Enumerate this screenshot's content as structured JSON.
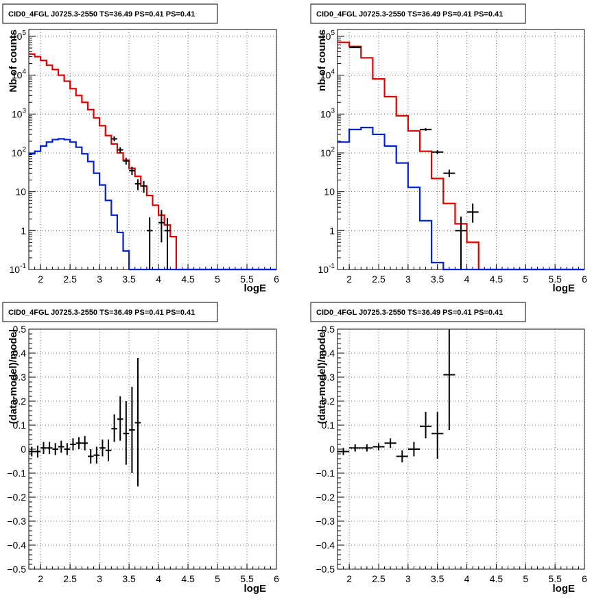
{
  "colors": {
    "data": "#000000",
    "model_total": "#e00000",
    "model_component": "#0020d8",
    "grid": "#444444"
  },
  "chart_data": [
    {
      "id": "top-left",
      "type": "line",
      "title": "CID0_4FGL J0725.3-2550 TS=36.49 PS=0.41 PS=0.41",
      "xlabel": "logE",
      "ylabel": "Nb of counts",
      "xlim": [
        1.8,
        6
      ],
      "ylim": [
        0.1,
        150000
      ],
      "log_y": true,
      "grid": true,
      "x_ticks": [
        "2",
        "2.5",
        "3",
        "3.5",
        "4",
        "4.5",
        "5",
        "5.5",
        "6"
      ],
      "y_ticks": [
        "10^-1",
        "1",
        "10",
        "10^2",
        "10^3",
        "10^4",
        "10^5"
      ],
      "series": [
        {
          "kind": "step",
          "color_key": "model_total",
          "edges": [
            1.8,
            1.9,
            2.0,
            2.1,
            2.2,
            2.3,
            2.4,
            2.5,
            2.6,
            2.7,
            2.8,
            2.9,
            3.0,
            3.1,
            3.2,
            3.3,
            3.4,
            3.5,
            3.6,
            3.7,
            3.8,
            3.9,
            4.0,
            4.1,
            4.2,
            4.3,
            4.4,
            4.5,
            4.6,
            4.7,
            4.8,
            4.9,
            5.0,
            5.1,
            5.2,
            5.3,
            5.4,
            5.5,
            5.6,
            5.7,
            5.8,
            5.9,
            6.0
          ],
          "values": [
            35000,
            30000,
            24000,
            18000,
            14000,
            10000,
            7000,
            4500,
            3000,
            2000,
            1300,
            800,
            500,
            280,
            170,
            100,
            65,
            40,
            25,
            14,
            8,
            4.5,
            2.5,
            1.4,
            0.7,
            0.1,
            0.1,
            0.1,
            0.1,
            0.1,
            0.1,
            0.1,
            0.1,
            0.1,
            0.1,
            0.1,
            0.1,
            0.1,
            0.1,
            0.1,
            0.1,
            0.1
          ]
        },
        {
          "kind": "step",
          "color_key": "model_component",
          "edges": [
            1.8,
            1.9,
            2.0,
            2.1,
            2.2,
            2.3,
            2.4,
            2.5,
            2.6,
            2.7,
            2.8,
            2.9,
            3.0,
            3.1,
            3.2,
            3.3,
            3.4,
            3.5,
            3.6,
            3.7,
            3.8,
            3.9,
            4.0,
            4.1,
            4.2,
            4.3,
            4.4,
            4.5,
            4.6,
            4.7,
            4.8,
            4.9,
            5.0,
            5.1,
            5.2,
            5.3,
            5.4,
            5.5,
            5.6,
            5.7,
            5.8,
            5.9,
            6.0
          ],
          "values": [
            95,
            110,
            150,
            190,
            220,
            230,
            220,
            190,
            140,
            95,
            60,
            30,
            15,
            6,
            2.5,
            0.9,
            0.3,
            0.1,
            0.1,
            0.1,
            0.1,
            0.1,
            0.1,
            0.1,
            0.1,
            0.1,
            0.1,
            0.1,
            0.1,
            0.1,
            0.1,
            0.1,
            0.1,
            0.1,
            0.1,
            0.1,
            0.1,
            0.1,
            0.1,
            0.1,
            0.1,
            0.1
          ]
        },
        {
          "kind": "points",
          "color_key": "data",
          "points": [
            {
              "x": 3.25,
              "y": 230,
              "xerr": 0.05,
              "ylo": 200,
              "yhi": 265
            },
            {
              "x": 3.35,
              "y": 120,
              "xerr": 0.05,
              "ylo": 100,
              "yhi": 140
            },
            {
              "x": 3.45,
              "y": 62,
              "xerr": 0.05,
              "ylo": 50,
              "yhi": 75
            },
            {
              "x": 3.55,
              "y": 35,
              "xerr": 0.05,
              "ylo": 27,
              "yhi": 44
            },
            {
              "x": 3.65,
              "y": 16,
              "xerr": 0.05,
              "ylo": 11,
              "yhi": 21
            },
            {
              "x": 3.75,
              "y": 14,
              "xerr": 0.05,
              "ylo": 9.5,
              "yhi": 19
            },
            {
              "x": 3.85,
              "y": 1.0,
              "xerr": 0.05,
              "ylo": 0.1,
              "yhi": 2.2
            },
            {
              "x": 4.05,
              "y": 1.6,
              "xerr": 0.05,
              "ylo": 0.5,
              "yhi": 3.4
            },
            {
              "x": 4.15,
              "y": 1.0,
              "xerr": 0.05,
              "ylo": 0.1,
              "yhi": 2.1
            }
          ]
        }
      ]
    },
    {
      "id": "top-right",
      "type": "line",
      "title": "CID0_4FGL J0725.3-2550 TS=36.49 PS=0.41 PS=0.41",
      "xlabel": "logE",
      "ylabel": "nb of counts",
      "xlim": [
        1.8,
        6
      ],
      "ylim": [
        0.1,
        150000
      ],
      "log_y": true,
      "grid": true,
      "x_ticks": [
        "2",
        "2.5",
        "3",
        "3.5",
        "4",
        "4.5",
        "5",
        "5.5",
        "6"
      ],
      "y_ticks": [
        "10^-1",
        "1",
        "10",
        "10^2",
        "10^3",
        "10^4",
        "10^5"
      ],
      "series": [
        {
          "kind": "step",
          "color_key": "model_total",
          "edges": [
            1.8,
            2.0,
            2.2,
            2.4,
            2.6,
            2.8,
            3.0,
            3.2,
            3.4,
            3.6,
            3.8,
            4.0,
            4.2,
            4.4,
            4.6,
            4.8,
            5.0,
            5.2,
            5.4,
            5.6,
            5.8,
            6.0
          ],
          "values": [
            70000,
            55000,
            28000,
            8000,
            2800,
            900,
            370,
            110,
            22,
            5,
            1.5,
            0.5,
            0.1,
            0.1,
            0.1,
            0.1,
            0.1,
            0.1,
            0.1,
            0.1,
            0.1
          ]
        },
        {
          "kind": "step",
          "color_key": "model_component",
          "edges": [
            1.8,
            2.0,
            2.2,
            2.4,
            2.6,
            2.8,
            3.0,
            3.2,
            3.4,
            3.6,
            3.8,
            4.0,
            4.2,
            4.4,
            4.6,
            4.8,
            5.0,
            5.2,
            5.4,
            5.6,
            5.8,
            6.0
          ],
          "values": [
            190,
            400,
            450,
            300,
            150,
            55,
            13,
            1.8,
            0.15,
            0.1,
            0.1,
            0.1,
            0.1,
            0.1,
            0.1,
            0.1,
            0.1,
            0.1,
            0.1,
            0.1,
            0.1
          ]
        },
        {
          "kind": "points",
          "color_key": "data",
          "points": [
            {
              "x": 2.1,
              "y": 52000,
              "xerr": 0.1,
              "ylo": 50000,
              "yhi": 54000
            },
            {
              "x": 3.3,
              "y": 400,
              "xerr": 0.1,
              "ylo": 370,
              "yhi": 430
            },
            {
              "x": 3.5,
              "y": 105,
              "xerr": 0.1,
              "ylo": 92,
              "yhi": 118
            },
            {
              "x": 3.7,
              "y": 30,
              "xerr": 0.1,
              "ylo": 24,
              "yhi": 37
            },
            {
              "x": 3.9,
              "y": 1.0,
              "xerr": 0.1,
              "ylo": 0.1,
              "yhi": 2.3
            },
            {
              "x": 4.1,
              "y": 3.0,
              "xerr": 0.1,
              "ylo": 1.6,
              "yhi": 5.0
            }
          ]
        }
      ]
    },
    {
      "id": "bottom-left",
      "type": "scatter",
      "title": "CID0_4FGL J0725.3-2550 TS=36.49 PS=0.41 PS=0.41",
      "xlabel": "logE",
      "ylabel": "(data-model)/model",
      "xlim": [
        1.8,
        6
      ],
      "ylim": [
        -0.5,
        0.5
      ],
      "log_y": false,
      "grid": true,
      "x_ticks": [
        "2",
        "2.5",
        "3",
        "3.5",
        "4",
        "4.5",
        "5",
        "5.5",
        "6"
      ],
      "y_ticks": [
        "-0.5",
        "-0.4",
        "-0.3",
        "-0.2",
        "-0.1",
        "0",
        "0.1",
        "0.2",
        "0.3",
        "0.4",
        "0.5"
      ],
      "series": [
        {
          "kind": "points",
          "color_key": "data",
          "points": [
            {
              "x": 1.85,
              "y": -0.01,
              "xerr": 0.05,
              "ylo": -0.03,
              "yhi": 0.01
            },
            {
              "x": 1.95,
              "y": -0.01,
              "xerr": 0.05,
              "ylo": -0.035,
              "yhi": 0.015
            },
            {
              "x": 2.05,
              "y": 0.005,
              "xerr": 0.05,
              "ylo": -0.02,
              "yhi": 0.03
            },
            {
              "x": 2.15,
              "y": 0.005,
              "xerr": 0.05,
              "ylo": -0.02,
              "yhi": 0.03
            },
            {
              "x": 2.25,
              "y": 0.0,
              "xerr": 0.05,
              "ylo": -0.025,
              "yhi": 0.025
            },
            {
              "x": 2.35,
              "y": 0.01,
              "xerr": 0.05,
              "ylo": -0.015,
              "yhi": 0.035
            },
            {
              "x": 2.45,
              "y": 0.0,
              "xerr": 0.05,
              "ylo": -0.025,
              "yhi": 0.025
            },
            {
              "x": 2.55,
              "y": 0.02,
              "xerr": 0.05,
              "ylo": -0.005,
              "yhi": 0.045
            },
            {
              "x": 2.65,
              "y": 0.025,
              "xerr": 0.05,
              "ylo": 0.0,
              "yhi": 0.05
            },
            {
              "x": 2.75,
              "y": 0.025,
              "xerr": 0.05,
              "ylo": -0.005,
              "yhi": 0.055
            },
            {
              "x": 2.85,
              "y": -0.03,
              "xerr": 0.05,
              "ylo": -0.06,
              "yhi": 0.0
            },
            {
              "x": 2.95,
              "y": -0.025,
              "xerr": 0.05,
              "ylo": -0.06,
              "yhi": 0.01
            },
            {
              "x": 3.05,
              "y": 0.005,
              "xerr": 0.05,
              "ylo": -0.03,
              "yhi": 0.04
            },
            {
              "x": 3.15,
              "y": -0.005,
              "xerr": 0.05,
              "ylo": -0.05,
              "yhi": 0.04
            },
            {
              "x": 3.25,
              "y": 0.085,
              "xerr": 0.05,
              "ylo": 0.03,
              "yhi": 0.145
            },
            {
              "x": 3.35,
              "y": 0.125,
              "xerr": 0.05,
              "ylo": 0.035,
              "yhi": 0.22
            },
            {
              "x": 3.45,
              "y": 0.065,
              "xerr": 0.05,
              "ylo": -0.065,
              "yhi": 0.2
            },
            {
              "x": 3.55,
              "y": 0.08,
              "xerr": 0.05,
              "ylo": -0.1,
              "yhi": 0.26
            },
            {
              "x": 3.65,
              "y": 0.11,
              "xerr": 0.05,
              "ylo": -0.155,
              "yhi": 0.38
            }
          ]
        }
      ]
    },
    {
      "id": "bottom-right",
      "type": "scatter",
      "title": "CID0_4FGL J0725.3-2550 TS=36.49 PS=0.41 PS=0.41",
      "xlabel": "logE",
      "ylabel": "(data-model)/model",
      "xlim": [
        1.8,
        6
      ],
      "ylim": [
        -0.5,
        0.5
      ],
      "log_y": false,
      "grid": true,
      "x_ticks": [
        "2",
        "2.5",
        "3",
        "3.5",
        "4",
        "4.5",
        "5",
        "5.5",
        "6"
      ],
      "y_ticks": [
        "-0.5",
        "-0.4",
        "-0.3",
        "-0.2",
        "-0.1",
        "0",
        "0.1",
        "0.2",
        "0.3",
        "0.4",
        "0.5"
      ],
      "series": [
        {
          "kind": "points",
          "color_key": "data",
          "points": [
            {
              "x": 1.9,
              "y": -0.01,
              "xerr": 0.1,
              "ylo": -0.025,
              "yhi": 0.005
            },
            {
              "x": 2.1,
              "y": 0.005,
              "xerr": 0.1,
              "ylo": -0.01,
              "yhi": 0.02
            },
            {
              "x": 2.3,
              "y": 0.005,
              "xerr": 0.1,
              "ylo": -0.01,
              "yhi": 0.02
            },
            {
              "x": 2.5,
              "y": 0.01,
              "xerr": 0.1,
              "ylo": -0.005,
              "yhi": 0.025
            },
            {
              "x": 2.7,
              "y": 0.025,
              "xerr": 0.1,
              "ylo": 0.005,
              "yhi": 0.045
            },
            {
              "x": 2.9,
              "y": -0.03,
              "xerr": 0.1,
              "ylo": -0.055,
              "yhi": -0.005
            },
            {
              "x": 3.1,
              "y": 0.0,
              "xerr": 0.1,
              "ylo": -0.03,
              "yhi": 0.03
            },
            {
              "x": 3.3,
              "y": 0.095,
              "xerr": 0.1,
              "ylo": 0.045,
              "yhi": 0.155
            },
            {
              "x": 3.5,
              "y": 0.065,
              "xerr": 0.1,
              "ylo": -0.04,
              "yhi": 0.155
            },
            {
              "x": 3.7,
              "y": 0.31,
              "xerr": 0.1,
              "ylo": 0.08,
              "yhi": 0.5
            }
          ]
        }
      ]
    }
  ]
}
